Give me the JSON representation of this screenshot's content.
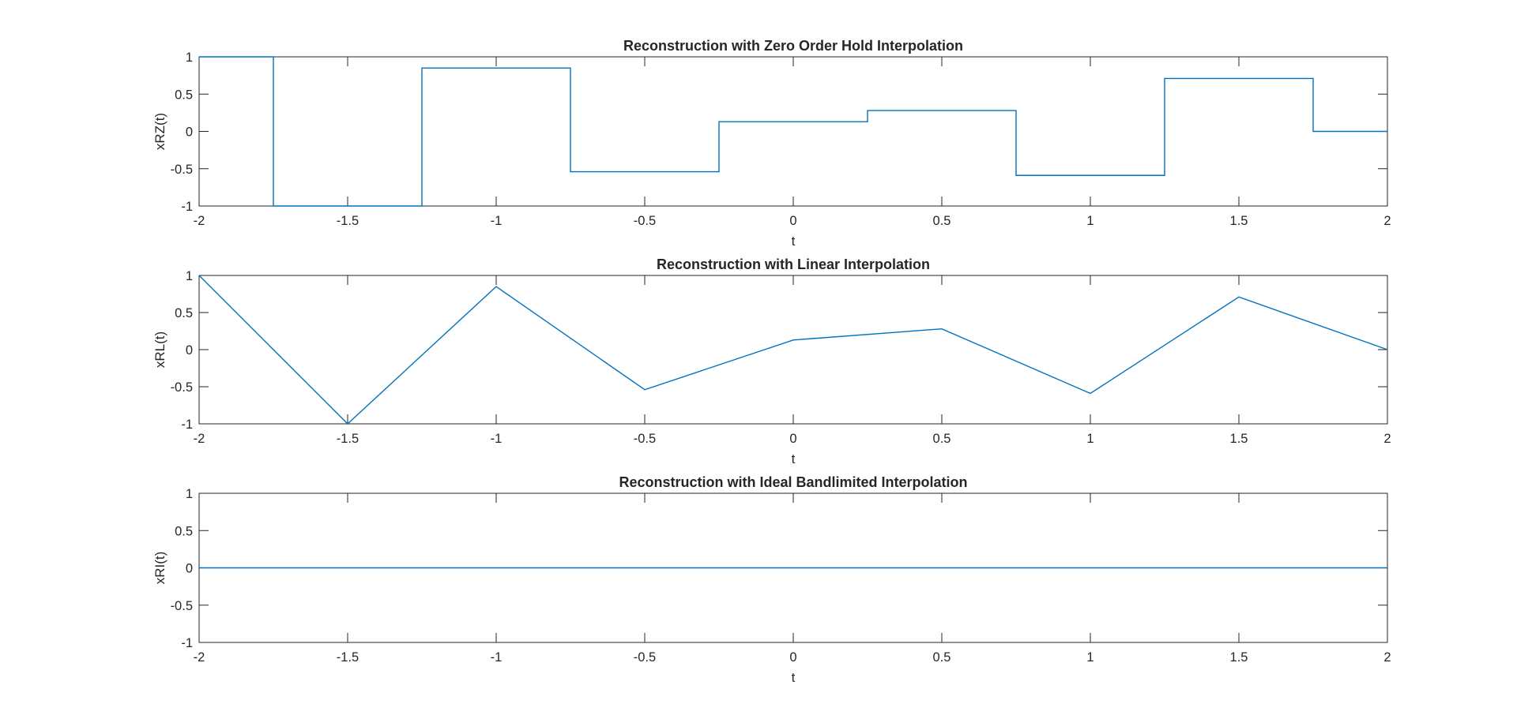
{
  "chart_data": [
    {
      "type": "line",
      "style": "step",
      "title": "Reconstruction with Zero Order Hold Interpolation",
      "xlabel": "t",
      "ylabel": "xRZ(t)",
      "xlim": [
        -2,
        2
      ],
      "ylim": [
        -1,
        1
      ],
      "xticks": [
        "-2",
        "-1.5",
        "-1",
        "-0.5",
        "0",
        "0.5",
        "1",
        "1.5",
        "2"
      ],
      "yticks": [
        "1",
        "0.5",
        "0",
        "-0.5",
        "-1"
      ],
      "grid": false,
      "color": "#0072BD",
      "x": [
        -2,
        -1.75,
        -1.75,
        -1.25,
        -1.25,
        -0.75,
        -0.75,
        -0.25,
        -0.25,
        0.25,
        0.25,
        0.75,
        0.75,
        1.25,
        1.25,
        1.75,
        1.75,
        2
      ],
      "y": [
        1,
        1,
        -1,
        -1,
        0.85,
        0.85,
        -0.54,
        -0.54,
        0.13,
        0.13,
        0.28,
        0.28,
        -0.59,
        -0.59,
        0.71,
        0.71,
        0,
        0
      ]
    },
    {
      "type": "line",
      "title": "Reconstruction with Linear Interpolation",
      "xlabel": "t",
      "ylabel": "xRL(t)",
      "xlim": [
        -2,
        2
      ],
      "ylim": [
        -1,
        1
      ],
      "xticks": [
        "-2",
        "-1.5",
        "-1",
        "-0.5",
        "0",
        "0.5",
        "1",
        "1.5",
        "2"
      ],
      "yticks": [
        "1",
        "0.5",
        "0",
        "-0.5",
        "-1"
      ],
      "grid": false,
      "color": "#0072BD",
      "x": [
        -2,
        -1.5,
        -1,
        -0.5,
        0,
        0.5,
        1,
        1.5,
        2
      ],
      "y": [
        1,
        -1,
        0.85,
        -0.54,
        0.13,
        0.28,
        -0.59,
        0.71,
        0
      ]
    },
    {
      "type": "line",
      "title": "Reconstruction with Ideal Bandlimited Interpolation",
      "xlabel": "t",
      "ylabel": "xRI(t)",
      "xlim": [
        -2,
        2
      ],
      "ylim": [
        -1,
        1
      ],
      "xticks": [
        "-2",
        "-1.5",
        "-1",
        "-0.5",
        "0",
        "0.5",
        "1",
        "1.5",
        "2"
      ],
      "yticks": [
        "1",
        "0.5",
        "0",
        "-0.5",
        "-1"
      ],
      "grid": false,
      "color": "#0072BD",
      "x": [
        -2,
        2
      ],
      "y": [
        0,
        0
      ]
    }
  ]
}
